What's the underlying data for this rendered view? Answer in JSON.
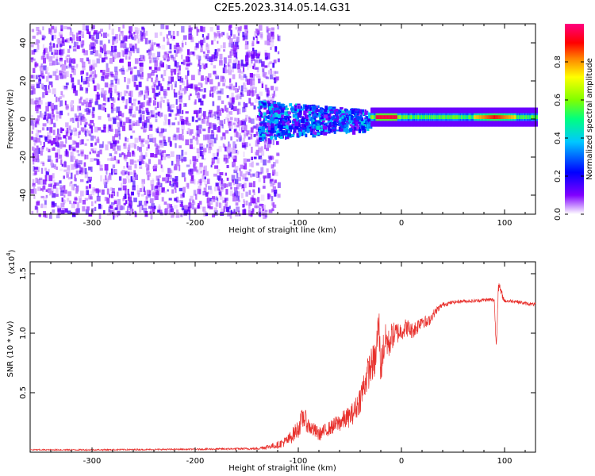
{
  "figure_title": "C2E5.2023.314.05.14.G31",
  "chart_data": [
    {
      "type": "heatmap",
      "xlabel": "Height of straight line (km)",
      "ylabel": "Frequency (Hz)",
      "xlim": [
        -360,
        130
      ],
      "ylim": [
        -50,
        50
      ],
      "xticks": [
        -300,
        -200,
        -100,
        0,
        100
      ],
      "yticks": [
        -40,
        -20,
        0,
        20,
        40
      ],
      "colorbar": {
        "label": "Normalized spectral amplitude",
        "range": [
          0.0,
          1.0
        ],
        "ticks": [
          "0.0",
          "0.2",
          "0.4",
          "0.6",
          "0.8"
        ],
        "colors": [
          "#ffffff",
          "#8000ff",
          "#0000ff",
          "#00c8ff",
          "#00ff80",
          "#80ff00",
          "#ffff00",
          "#ff8000",
          "#ff0000",
          "#ff0080"
        ]
      },
      "regions": [
        {
          "x_range": [
            -360,
            -130
          ],
          "amplitude": 0.05,
          "description": "diffuse noise"
        },
        {
          "x_range": [
            -140,
            -30
          ],
          "freq_spread_hz": 10,
          "amplitude": 0.3
        },
        {
          "x_range": [
            -30,
            0
          ],
          "freq_hz": 1,
          "amplitude": 0.6
        },
        {
          "x_range": [
            0,
            130
          ],
          "freq_hz": 1,
          "amplitude": 0.55
        },
        {
          "x_range": [
            -25,
            -5
          ],
          "freq_hz": 1,
          "amplitude": 0.95
        },
        {
          "x_range": [
            70,
            110
          ],
          "freq_hz": 1,
          "amplitude": 0.9
        }
      ]
    },
    {
      "type": "line",
      "xlabel": "Height of straight line (km)",
      "ylabel": "SNR (10 * v/v)",
      "ylabel_scale": "(x10",
      "ylabel_scale_exp": "4",
      "ylabel_scale_close": ")",
      "xlim": [
        -360,
        130
      ],
      "ylim": [
        0,
        1.6
      ],
      "xticks": [
        -300,
        -200,
        -100,
        0,
        100
      ],
      "yticks": [
        0.5,
        1.0,
        1.5
      ],
      "ytick_labels": [
        "0.5",
        "1.0",
        "1.5"
      ],
      "series": [
        {
          "color": "#e8302c",
          "x": [
            -360,
            -300,
            -200,
            -140,
            -120,
            -110,
            -100,
            -95,
            -90,
            -80,
            -70,
            -60,
            -50,
            -45,
            -40,
            -35,
            -30,
            -25,
            -22,
            -20,
            -18,
            -15,
            -12,
            -10,
            -5,
            0,
            5,
            10,
            15,
            20,
            25,
            30,
            35,
            40,
            50,
            60,
            70,
            80,
            90,
            92,
            94,
            100,
            110,
            120,
            130
          ],
          "y": [
            0.02,
            0.02,
            0.025,
            0.03,
            0.06,
            0.1,
            0.2,
            0.3,
            0.22,
            0.15,
            0.2,
            0.25,
            0.3,
            0.35,
            0.45,
            0.6,
            0.72,
            0.78,
            1.1,
            0.7,
            0.85,
            0.95,
            0.9,
            0.97,
            1.0,
            1.02,
            1.05,
            1.02,
            1.05,
            1.12,
            1.08,
            1.15,
            1.2,
            1.24,
            1.26,
            1.27,
            1.27,
            1.28,
            1.28,
            0.88,
            1.4,
            1.27,
            1.27,
            1.25,
            1.24
          ],
          "noise": [
            0.005,
            0.006,
            0.006,
            0.01,
            0.03,
            0.05,
            0.08,
            0.1,
            0.07,
            0.06,
            0.06,
            0.08,
            0.09,
            0.1,
            0.12,
            0.14,
            0.15,
            0.16,
            0.18,
            0.16,
            0.15,
            0.14,
            0.13,
            0.12,
            0.1,
            0.08,
            0.08,
            0.07,
            0.07,
            0.06,
            0.05,
            0.04,
            0.03,
            0.02,
            0.015,
            0.015,
            0.015,
            0.015,
            0.02,
            0.03,
            0.05,
            0.015,
            0.015,
            0.015,
            0.015
          ]
        }
      ]
    }
  ]
}
